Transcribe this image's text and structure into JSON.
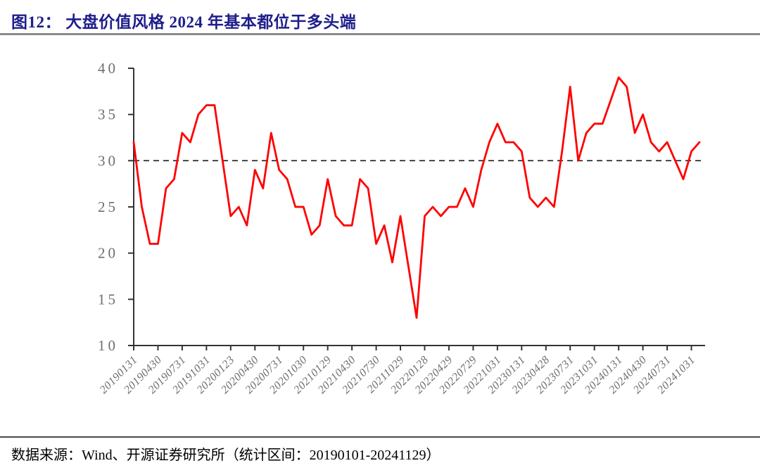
{
  "header": {
    "title": "图12：  大盘价值风格 2024 年基本都位于多头端",
    "title_color": "#1e1e8c"
  },
  "footer": {
    "source": "数据来源：Wind、开源证券研究所（统计区间：20190101-20241129）"
  },
  "chart_data": {
    "type": "line",
    "title": "",
    "xlabel": "",
    "ylabel": "",
    "ylim": [
      10,
      40
    ],
    "y_ticks": [
      40,
      35,
      30,
      25,
      20,
      15,
      10
    ],
    "grid": false,
    "legend": "none",
    "reference_line_y": 30,
    "reference_line_style": "black-dashed",
    "line_color": "#ff0000",
    "axis_color": "#333333",
    "tick_label_color": "#6e6e6e",
    "x_axis_labels": [
      "20190131",
      "20190430",
      "20190731",
      "20191031",
      "20200123",
      "20200430",
      "20200731",
      "20201030",
      "20210129",
      "20210430",
      "20210730",
      "20211029",
      "20220128",
      "20220429",
      "20220729",
      "20221031",
      "20230131",
      "20230428",
      "20230731",
      "20231031",
      "20240131",
      "20240430",
      "20240731",
      "20241031"
    ],
    "x_label_every_n_points": 3,
    "months": [
      "2019-01",
      "2019-02",
      "2019-03",
      "2019-04",
      "2019-05",
      "2019-06",
      "2019-07",
      "2019-08",
      "2019-09",
      "2019-10",
      "2019-11",
      "2019-12",
      "2020-01",
      "2020-02",
      "2020-03",
      "2020-04",
      "2020-05",
      "2020-06",
      "2020-07",
      "2020-08",
      "2020-09",
      "2020-10",
      "2020-11",
      "2020-12",
      "2021-01",
      "2021-02",
      "2021-03",
      "2021-04",
      "2021-05",
      "2021-06",
      "2021-07",
      "2021-08",
      "2021-09",
      "2021-10",
      "2021-11",
      "2021-12",
      "2022-01",
      "2022-02",
      "2022-03",
      "2022-04",
      "2022-05",
      "2022-06",
      "2022-07",
      "2022-08",
      "2022-09",
      "2022-10",
      "2022-11",
      "2022-12",
      "2023-01",
      "2023-02",
      "2023-03",
      "2023-04",
      "2023-05",
      "2023-06",
      "2023-07",
      "2023-08",
      "2023-09",
      "2023-10",
      "2023-11",
      "2023-12",
      "2024-01",
      "2024-02",
      "2024-03",
      "2024-04",
      "2024-05",
      "2024-06",
      "2024-07",
      "2024-08",
      "2024-09",
      "2024-10",
      "2024-11"
    ],
    "values": [
      32,
      25,
      21,
      21,
      27,
      28,
      33,
      32,
      35,
      36,
      36,
      30,
      24,
      25,
      23,
      29,
      27,
      33,
      29,
      28,
      25,
      25,
      22,
      23,
      28,
      24,
      23,
      23,
      28,
      27,
      21,
      23,
      19,
      24,
      18.5,
      13,
      24,
      25,
      24,
      25,
      25,
      27,
      25,
      29,
      32,
      34,
      32,
      32,
      31,
      26,
      25,
      26,
      25,
      31,
      38,
      30,
      33,
      34,
      34,
      36.5,
      39,
      38,
      33,
      35,
      32,
      31,
      32,
      30,
      28,
      31,
      32
    ]
  }
}
